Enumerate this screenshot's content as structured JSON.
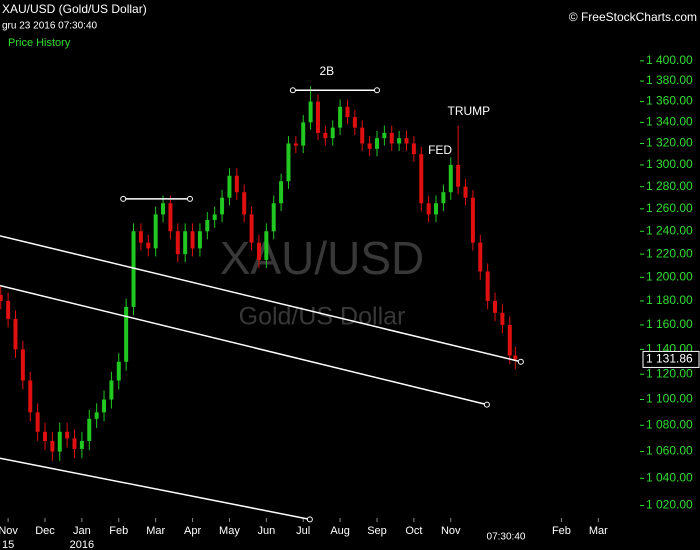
{
  "chart_data": {
    "type": "candlestick",
    "title": "XAU/USD (Gold/US Dollar)",
    "timestamp": "gru 23 2016 07:30:40",
    "subtitle": "Price History",
    "credit": "© FreeStockCharts.com",
    "watermark": "XAU/USD",
    "watermark_subtitle": "Gold/US Dollar",
    "time_label": "07:30:40",
    "log_scale": true,
    "up_color": "#22c822",
    "down_color": "#e01010",
    "line_color": "#ffffff",
    "xlim": [
      -0.22,
      17.13
    ],
    "ylim": [
      1011,
      1462
    ],
    "xticks": [
      {
        "value": 0,
        "label": "Nov"
      },
      {
        "value": 1,
        "label": "Dec"
      },
      {
        "value": 2,
        "label": "Jan"
      },
      {
        "value": 3,
        "label": "Feb"
      },
      {
        "value": 4,
        "label": "Mar"
      },
      {
        "value": 5,
        "label": "Apr"
      },
      {
        "value": 6,
        "label": "May"
      },
      {
        "value": 7,
        "label": "Jun"
      },
      {
        "value": 8,
        "label": "Jul"
      },
      {
        "value": 9,
        "label": "Aug"
      },
      {
        "value": 10,
        "label": "Sep"
      },
      {
        "value": 11,
        "label": "Oct"
      },
      {
        "value": 12,
        "label": "Nov"
      },
      {
        "value": 15,
        "label": "Feb"
      },
      {
        "value": 16,
        "label": "Mar"
      }
    ],
    "year_labels": [
      {
        "value": 0,
        "label": "15"
      },
      {
        "value": 2,
        "label": "2016"
      }
    ],
    "yticks": [
      {
        "value": 1020,
        "label": "1 020.00"
      },
      {
        "value": 1040,
        "label": "1 040.00"
      },
      {
        "value": 1060,
        "label": "1 060.00"
      },
      {
        "value": 1080,
        "label": "1 080.00"
      },
      {
        "value": 1100,
        "label": "1 100.00"
      },
      {
        "value": 1120,
        "label": "1 120.00"
      },
      {
        "value": 1140,
        "label": "1 140.00"
      },
      {
        "value": 1160,
        "label": "1 160.00"
      },
      {
        "value": 1180,
        "label": "1 180.00"
      },
      {
        "value": 1200,
        "label": "1 200.00"
      },
      {
        "value": 1220,
        "label": "1 220.00"
      },
      {
        "value": 1240,
        "label": "1 240.00"
      },
      {
        "value": 1260,
        "label": "1 260.00"
      },
      {
        "value": 1280,
        "label": "1 280.00"
      },
      {
        "value": 1300,
        "label": "1 300.00"
      },
      {
        "value": 1320,
        "label": "1 320.00"
      },
      {
        "value": 1340,
        "label": "1 340.00"
      },
      {
        "value": 1360,
        "label": "1 360.00"
      },
      {
        "value": 1380,
        "label": "1 380.00"
      },
      {
        "value": 1400,
        "label": "1 400.00"
      }
    ],
    "last_price": {
      "value": 1131.86,
      "label": "1 131.86"
    },
    "x": [
      -0.2,
      0,
      0.2,
      0.4,
      0.6,
      0.8,
      1,
      1.2,
      1.4,
      1.6,
      1.8,
      2,
      2.2,
      2.4,
      2.6,
      2.8,
      3,
      3.2,
      3.4,
      3.6,
      3.8,
      4,
      4.2,
      4.4,
      4.6,
      4.8,
      5,
      5.2,
      5.4,
      5.6,
      5.8,
      6,
      6.2,
      6.4,
      6.6,
      6.8,
      7,
      7.2,
      7.4,
      7.6,
      7.8,
      8,
      8.2,
      8.4,
      8.6,
      8.8,
      9,
      9.2,
      9.4,
      9.6,
      9.8,
      10,
      10.2,
      10.4,
      10.6,
      10.8,
      11,
      11.2,
      11.4,
      11.6,
      11.8,
      12,
      12.2,
      12.4,
      12.6,
      12.8,
      13,
      13.2,
      13.4,
      13.6,
      13.75
    ],
    "open": [
      1185,
      1180,
      1165,
      1140,
      1115,
      1090,
      1075,
      1068,
      1060,
      1075,
      1070,
      1062,
      1068,
      1085,
      1090,
      1100,
      1115,
      1130,
      1175,
      1240,
      1230,
      1225,
      1255,
      1265,
      1240,
      1220,
      1240,
      1225,
      1240,
      1250,
      1255,
      1270,
      1290,
      1275,
      1255,
      1230,
      1215,
      1240,
      1265,
      1285,
      1320,
      1318,
      1340,
      1360,
      1330,
      1325,
      1335,
      1355,
      1345,
      1335,
      1320,
      1315,
      1325,
      1330,
      1320,
      1325,
      1320,
      1310,
      1265,
      1255,
      1265,
      1275,
      1300,
      1280,
      1270,
      1230,
      1205,
      1180,
      1170,
      1160,
      1135
    ],
    "high": [
      1192,
      1187,
      1172,
      1147,
      1122,
      1097,
      1082,
      1075,
      1082,
      1082,
      1077,
      1075,
      1092,
      1097,
      1107,
      1122,
      1137,
      1182,
      1247,
      1247,
      1237,
      1262,
      1272,
      1272,
      1247,
      1247,
      1247,
      1247,
      1257,
      1262,
      1277,
      1297,
      1297,
      1282,
      1262,
      1237,
      1247,
      1272,
      1292,
      1327,
      1327,
      1347,
      1375,
      1367,
      1337,
      1342,
      1362,
      1362,
      1352,
      1342,
      1327,
      1332,
      1337,
      1337,
      1332,
      1332,
      1327,
      1317,
      1272,
      1272,
      1282,
      1307,
      1337,
      1287,
      1277,
      1237,
      1212,
      1187,
      1177,
      1167,
      1142
    ],
    "low": [
      1173,
      1158,
      1133,
      1108,
      1083,
      1068,
      1061,
      1053,
      1053,
      1063,
      1055,
      1055,
      1061,
      1078,
      1083,
      1093,
      1108,
      1123,
      1168,
      1223,
      1218,
      1218,
      1248,
      1233,
      1213,
      1213,
      1218,
      1218,
      1233,
      1243,
      1248,
      1263,
      1268,
      1248,
      1223,
      1208,
      1208,
      1233,
      1258,
      1278,
      1311,
      1311,
      1333,
      1323,
      1318,
      1318,
      1328,
      1338,
      1328,
      1313,
      1308,
      1308,
      1318,
      1313,
      1313,
      1313,
      1303,
      1258,
      1248,
      1248,
      1258,
      1268,
      1273,
      1263,
      1223,
      1198,
      1173,
      1163,
      1153,
      1128,
      1124
    ],
    "close": [
      1180,
      1165,
      1140,
      1115,
      1090,
      1075,
      1068,
      1060,
      1075,
      1070,
      1062,
      1068,
      1085,
      1090,
      1100,
      1115,
      1130,
      1175,
      1240,
      1230,
      1225,
      1255,
      1265,
      1240,
      1220,
      1240,
      1225,
      1240,
      1250,
      1255,
      1270,
      1290,
      1275,
      1255,
      1230,
      1215,
      1240,
      1265,
      1285,
      1320,
      1318,
      1340,
      1360,
      1330,
      1325,
      1335,
      1355,
      1345,
      1335,
      1320,
      1315,
      1325,
      1330,
      1320,
      1325,
      1320,
      1310,
      1265,
      1255,
      1265,
      1275,
      1300,
      1280,
      1270,
      1230,
      1205,
      1180,
      1170,
      1160,
      1135,
      1131.86
    ],
    "lines": [
      {
        "x": [
          -0.22,
          13.9
        ],
        "y": [
          1236,
          1130
        ],
        "end_markers": [
          1
        ]
      },
      {
        "x": [
          -0.22,
          12.98
        ],
        "y": [
          1193,
          1096
        ],
        "end_markers": [
          1
        ]
      },
      {
        "x": [
          -0.22,
          8.18
        ],
        "y": [
          1055,
          1010
        ],
        "end_markers": [
          1
        ]
      },
      {
        "x": [
          3.12,
          4.93
        ],
        "y": [
          1269,
          1269
        ],
        "end_markers": [
          0,
          1
        ]
      },
      {
        "x": [
          7.72,
          10.0
        ],
        "y": [
          1371,
          1371
        ],
        "end_markers": [
          0,
          1
        ]
      }
    ],
    "annotations": [
      {
        "text": "2B",
        "x": 8.64,
        "y": 1389
      },
      {
        "text": "TRUMP",
        "x": 12.49,
        "y": 1350
      },
      {
        "text": "FED",
        "x": 11.71,
        "y": 1313
      }
    ]
  }
}
